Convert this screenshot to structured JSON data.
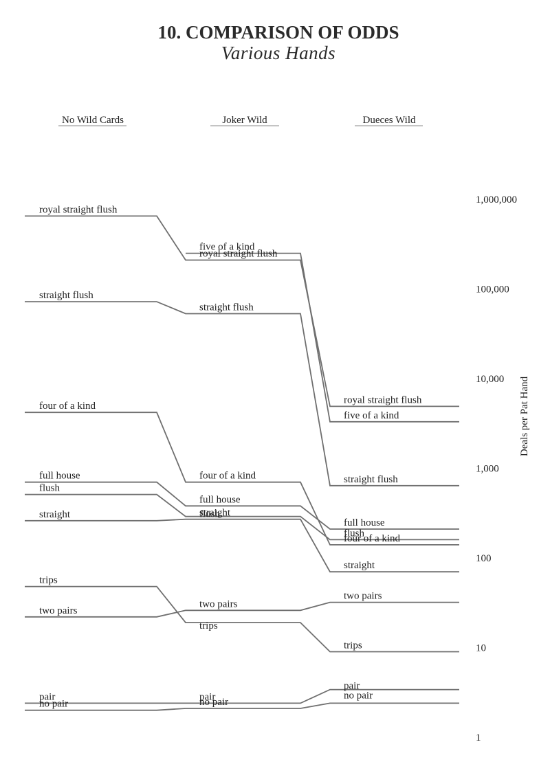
{
  "chart_data": {
    "type": "line",
    "title": "10. COMPARISON OF ODDS",
    "subtitle": "Various Hands",
    "ylabel": "Deals per Pat Hand",
    "yscale": "log",
    "ylim": [
      1,
      1000000
    ],
    "yticks": [
      {
        "value": 1000000,
        "label": "1,000,000"
      },
      {
        "value": 100000,
        "label": "100,000"
      },
      {
        "value": 10000,
        "label": "10,000"
      },
      {
        "value": 1000,
        "label": "1,000"
      },
      {
        "value": 100,
        "label": "100"
      },
      {
        "value": 10,
        "label": "10"
      },
      {
        "value": 1,
        "label": "1"
      }
    ],
    "columns": [
      "No Wild Cards",
      "Joker Wild",
      "Dueces Wild"
    ],
    "series": [
      {
        "name": "royal straight flush",
        "values": [
          650000,
          210000,
          4900
        ]
      },
      {
        "name": "five of a kind",
        "values": [
          null,
          250000,
          3300
        ]
      },
      {
        "name": "straight flush",
        "values": [
          72000,
          53000,
          640
        ]
      },
      {
        "name": "four of a kind",
        "values": [
          4200,
          700,
          140
        ]
      },
      {
        "name": "full house",
        "values": [
          700,
          380,
          210
        ]
      },
      {
        "name": "flush",
        "values": [
          510,
          290,
          160
        ]
      },
      {
        "name": "straight",
        "values": [
          260,
          270,
          70
        ]
      },
      {
        "name": "trips",
        "values": [
          48,
          19,
          9
        ]
      },
      {
        "name": "two pairs",
        "values": [
          22,
          26,
          32
        ]
      },
      {
        "name": "pair",
        "values": [
          2.4,
          2.4,
          3.4
        ]
      },
      {
        "name": "no pair",
        "values": [
          2.0,
          2.1,
          2.4
        ]
      }
    ],
    "point_labels": [
      {
        "column": 0,
        "labels": [
          "royal straight flush",
          "straight flush",
          "four of a kind",
          "full house",
          "flush",
          "straight",
          "trips",
          "two pairs",
          "pair",
          "no pair"
        ]
      },
      {
        "column": 1,
        "labels": [
          "five of a kind",
          "royal straight flush",
          "straight flush",
          "four of a kind",
          "full house",
          "flush",
          "straight",
          "two pairs",
          "trips",
          "pair",
          "no pair"
        ]
      },
      {
        "column": 2,
        "labels": [
          "royal straight flush",
          "five of a kind",
          "straight flush",
          "full house",
          "flush",
          "four of a kind",
          "straight",
          "two pairs",
          "trips",
          "no pair",
          "pair"
        ]
      }
    ],
    "grid": false,
    "legend": "none"
  }
}
